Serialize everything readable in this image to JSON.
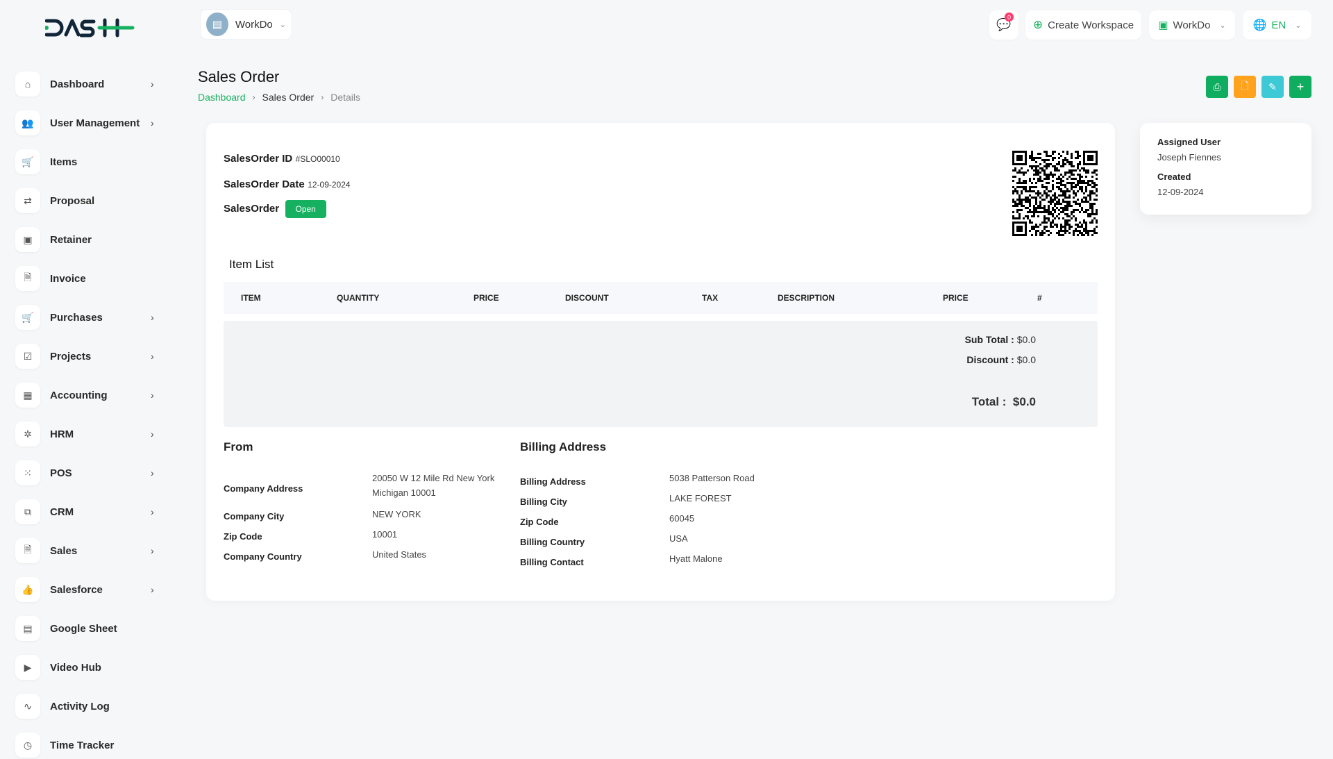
{
  "brand": {
    "logo_text": "DASH"
  },
  "workspace": {
    "name": "WorkDo"
  },
  "header": {
    "messages_count": "0",
    "create_workspace": "Create Workspace",
    "workspace_menu": "WorkDo",
    "language": "EN"
  },
  "sidebar": {
    "items": [
      {
        "label": "Dashboard",
        "icon": "home-icon",
        "glyph": "⌂",
        "chevron": true
      },
      {
        "label": "User Management",
        "icon": "users-icon",
        "glyph": "👥",
        "chevron": true
      },
      {
        "label": "Items",
        "icon": "cart-icon",
        "glyph": "🛒",
        "chevron": false
      },
      {
        "label": "Proposal",
        "icon": "proposal-icon",
        "glyph": "⇄",
        "chevron": false
      },
      {
        "label": "Retainer",
        "icon": "retainer-icon",
        "glyph": "▣",
        "chevron": false
      },
      {
        "label": "Invoice",
        "icon": "invoice-icon",
        "glyph": "🗎",
        "chevron": false
      },
      {
        "label": "Purchases",
        "icon": "cart-icon",
        "glyph": "🛒",
        "chevron": true
      },
      {
        "label": "Projects",
        "icon": "checkbox-icon",
        "glyph": "☑",
        "chevron": true
      },
      {
        "label": "Accounting",
        "icon": "grid-icon",
        "glyph": "▦",
        "chevron": true
      },
      {
        "label": "HRM",
        "icon": "hrm-icon",
        "glyph": "✲",
        "chevron": true
      },
      {
        "label": "POS",
        "icon": "dots-grid-icon",
        "glyph": "⁙",
        "chevron": true
      },
      {
        "label": "CRM",
        "icon": "crm-icon",
        "glyph": "⧉",
        "chevron": true
      },
      {
        "label": "Sales",
        "icon": "document-icon",
        "glyph": "🗎",
        "chevron": true
      },
      {
        "label": "Salesforce",
        "icon": "thumbs-up-icon",
        "glyph": "👍",
        "chevron": true
      },
      {
        "label": "Google Sheet",
        "icon": "table-icon",
        "glyph": "▤",
        "chevron": false
      },
      {
        "label": "Video Hub",
        "icon": "video-icon",
        "glyph": "▶",
        "chevron": false
      },
      {
        "label": "Activity Log",
        "icon": "activity-icon",
        "glyph": "∿",
        "chevron": false
      },
      {
        "label": "Time Tracker",
        "icon": "clock-icon",
        "glyph": "◷",
        "chevron": false
      }
    ]
  },
  "page": {
    "title": "Sales Order",
    "breadcrumb": [
      "Dashboard",
      "Sales Order",
      "Details"
    ]
  },
  "actions": {
    "colors": {
      "print": "#0ead5f",
      "pdf": "#ffa21d",
      "edit": "#3ec9d6",
      "add": "#0ead5f"
    }
  },
  "order": {
    "id_label": "SalesOrder ID",
    "id": "#SLO00010",
    "date_label": "SalesOrder Date",
    "date": "12-09-2024",
    "status_label": "SalesOrder",
    "status": "Open"
  },
  "items": {
    "title": "Item List",
    "columns": [
      "ITEM",
      "QUANTITY",
      "PRICE",
      "DISCOUNT",
      "TAX",
      "DESCRIPTION",
      "PRICE",
      "#"
    ],
    "rows": []
  },
  "totals": {
    "subtotal_label": "Sub Total :",
    "subtotal": "$0.0",
    "discount_label": "Discount :",
    "discount": "$0.0",
    "total_label": "Total :",
    "total": "$0.0"
  },
  "from": {
    "title": "From",
    "rows": [
      {
        "label": "Company Address",
        "value": "20050 W 12 Mile Rd New York Michigan 10001"
      },
      {
        "label": "Company City",
        "value": "NEW YORK"
      },
      {
        "label": "Zip Code",
        "value": "10001"
      },
      {
        "label": "Company Country",
        "value": "United States"
      }
    ]
  },
  "billing": {
    "title": "Billing Address",
    "rows": [
      {
        "label": "Billing Address",
        "value": "5038 Patterson Road"
      },
      {
        "label": "Billing City",
        "value": "LAKE FOREST"
      },
      {
        "label": "Zip Code",
        "value": "60045"
      },
      {
        "label": "Billing Country",
        "value": "USA"
      },
      {
        "label": "Billing Contact",
        "value": "Hyatt Malone"
      }
    ]
  },
  "info": {
    "assigned_label": "Assigned User",
    "assigned": "Joseph Fiennes",
    "created_label": "Created",
    "created": "12-09-2024"
  }
}
